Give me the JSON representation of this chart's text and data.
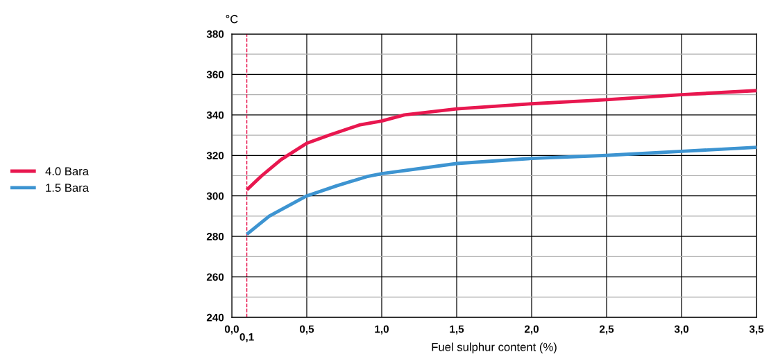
{
  "chart_data": {
    "type": "line",
    "ylabel": "°C",
    "xlabel": "Fuel sulphur content (%)",
    "series": [
      {
        "name": "4.0 Bara",
        "color": "#e8174f",
        "x": [
          0.1,
          0.2,
          0.33,
          0.5,
          0.65,
          0.85,
          1.0,
          1.15,
          1.5,
          2.0,
          2.5,
          3.0,
          3.5
        ],
        "values": [
          303,
          310,
          318,
          326,
          330,
          335,
          337,
          340,
          343,
          345.5,
          347.5,
          350,
          352
        ]
      },
      {
        "name": "1.5 Bara",
        "color": "#3d94d1",
        "x": [
          0.1,
          0.25,
          0.5,
          0.7,
          0.9,
          1.0,
          1.5,
          2.0,
          2.5,
          3.0,
          3.5
        ],
        "values": [
          281,
          290,
          300,
          305,
          309.5,
          311,
          316,
          318.5,
          320,
          322,
          324
        ]
      }
    ],
    "xlim": [
      0,
      3.5
    ],
    "xticks": [
      {
        "value": 0,
        "label": "0,0"
      },
      {
        "value": 0.5,
        "label": "0,5"
      },
      {
        "value": 1.0,
        "label": "1,0"
      },
      {
        "value": 1.5,
        "label": "1,5"
      },
      {
        "value": 2.0,
        "label": "2,0"
      },
      {
        "value": 2.5,
        "label": "2,5"
      },
      {
        "value": 3.0,
        "label": "3,0"
      },
      {
        "value": 3.5,
        "label": "3,5"
      }
    ],
    "ylim": [
      240,
      380
    ],
    "yticks": [
      240,
      {
        "value": 250,
        "label": null
      },
      260,
      {
        "value": 270,
        "label": null
      },
      280,
      {
        "value": 290,
        "label": null
      },
      300,
      {
        "value": 310,
        "label": null
      },
      320,
      {
        "value": 330,
        "label": null
      },
      340,
      {
        "value": 350,
        "label": null
      },
      360,
      {
        "value": 370,
        "label": null
      },
      380
    ],
    "ref_lines": [
      {
        "axis": "x",
        "value": 0.1,
        "label": "0,1",
        "color": "#e8174f",
        "line_style": "dashed"
      }
    ],
    "grid": true,
    "legend": "left",
    "marker": "none",
    "line_style": "solid"
  }
}
